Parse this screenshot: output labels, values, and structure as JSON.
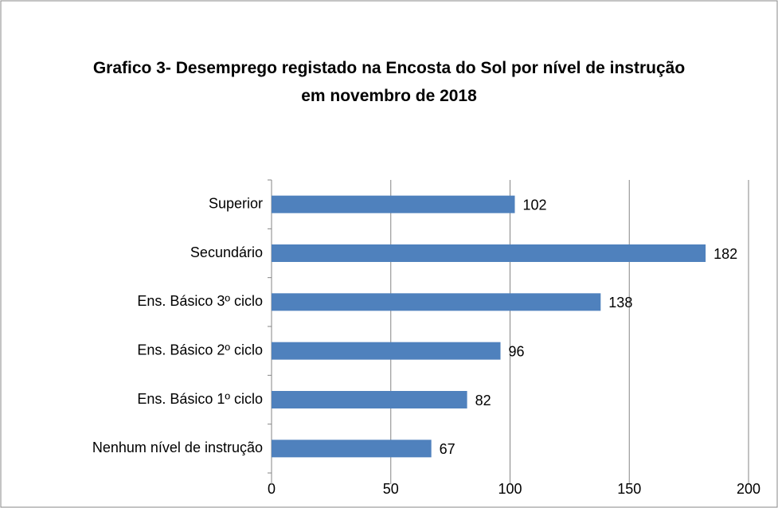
{
  "chart_data": {
    "type": "bar",
    "orientation": "horizontal",
    "title": "Grafico 3- Desemprego registado na Encosta do Sol por nível de instrução em novembro de 2018",
    "categories": [
      "Superior",
      "Secundário",
      "Ens. Básico 3º ciclo",
      "Ens. Básico 2º ciclo",
      "Ens. Básico 1º ciclo",
      "Nenhum nível de instrução"
    ],
    "values": [
      102,
      182,
      138,
      96,
      82,
      67
    ],
    "color": "#4f81bd",
    "xlim": [
      0,
      200
    ],
    "xticks": [
      0,
      50,
      100,
      150,
      200
    ],
    "grid": true
  }
}
